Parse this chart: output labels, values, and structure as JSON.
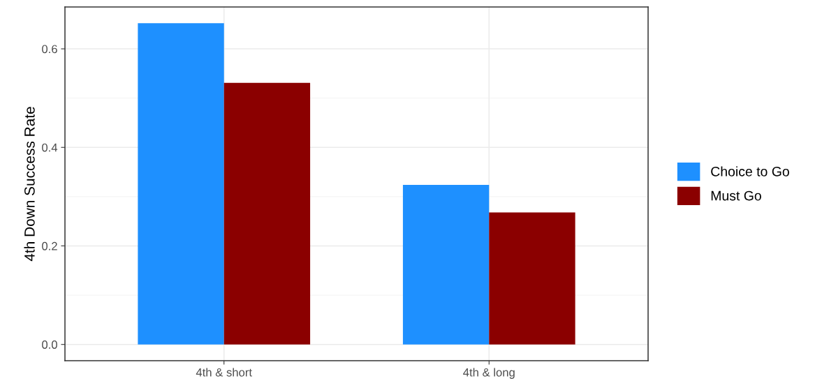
{
  "chart_data": {
    "type": "bar",
    "categories": [
      "4th & short",
      "4th & long"
    ],
    "series": [
      {
        "name": "Choice to Go",
        "color": "#1e90ff",
        "values": [
          0.652,
          0.324
        ]
      },
      {
        "name": "Must Go",
        "color": "#8b0000",
        "values": [
          0.531,
          0.268
        ]
      }
    ],
    "ylabel": "4th Down Success Rate",
    "ylim": [
      -0.033,
      0.685
    ],
    "yticks": [
      {
        "value": 0,
        "label": "0.0"
      },
      0.2,
      0.4,
      0.6
    ],
    "grid": true,
    "legend": "right"
  }
}
